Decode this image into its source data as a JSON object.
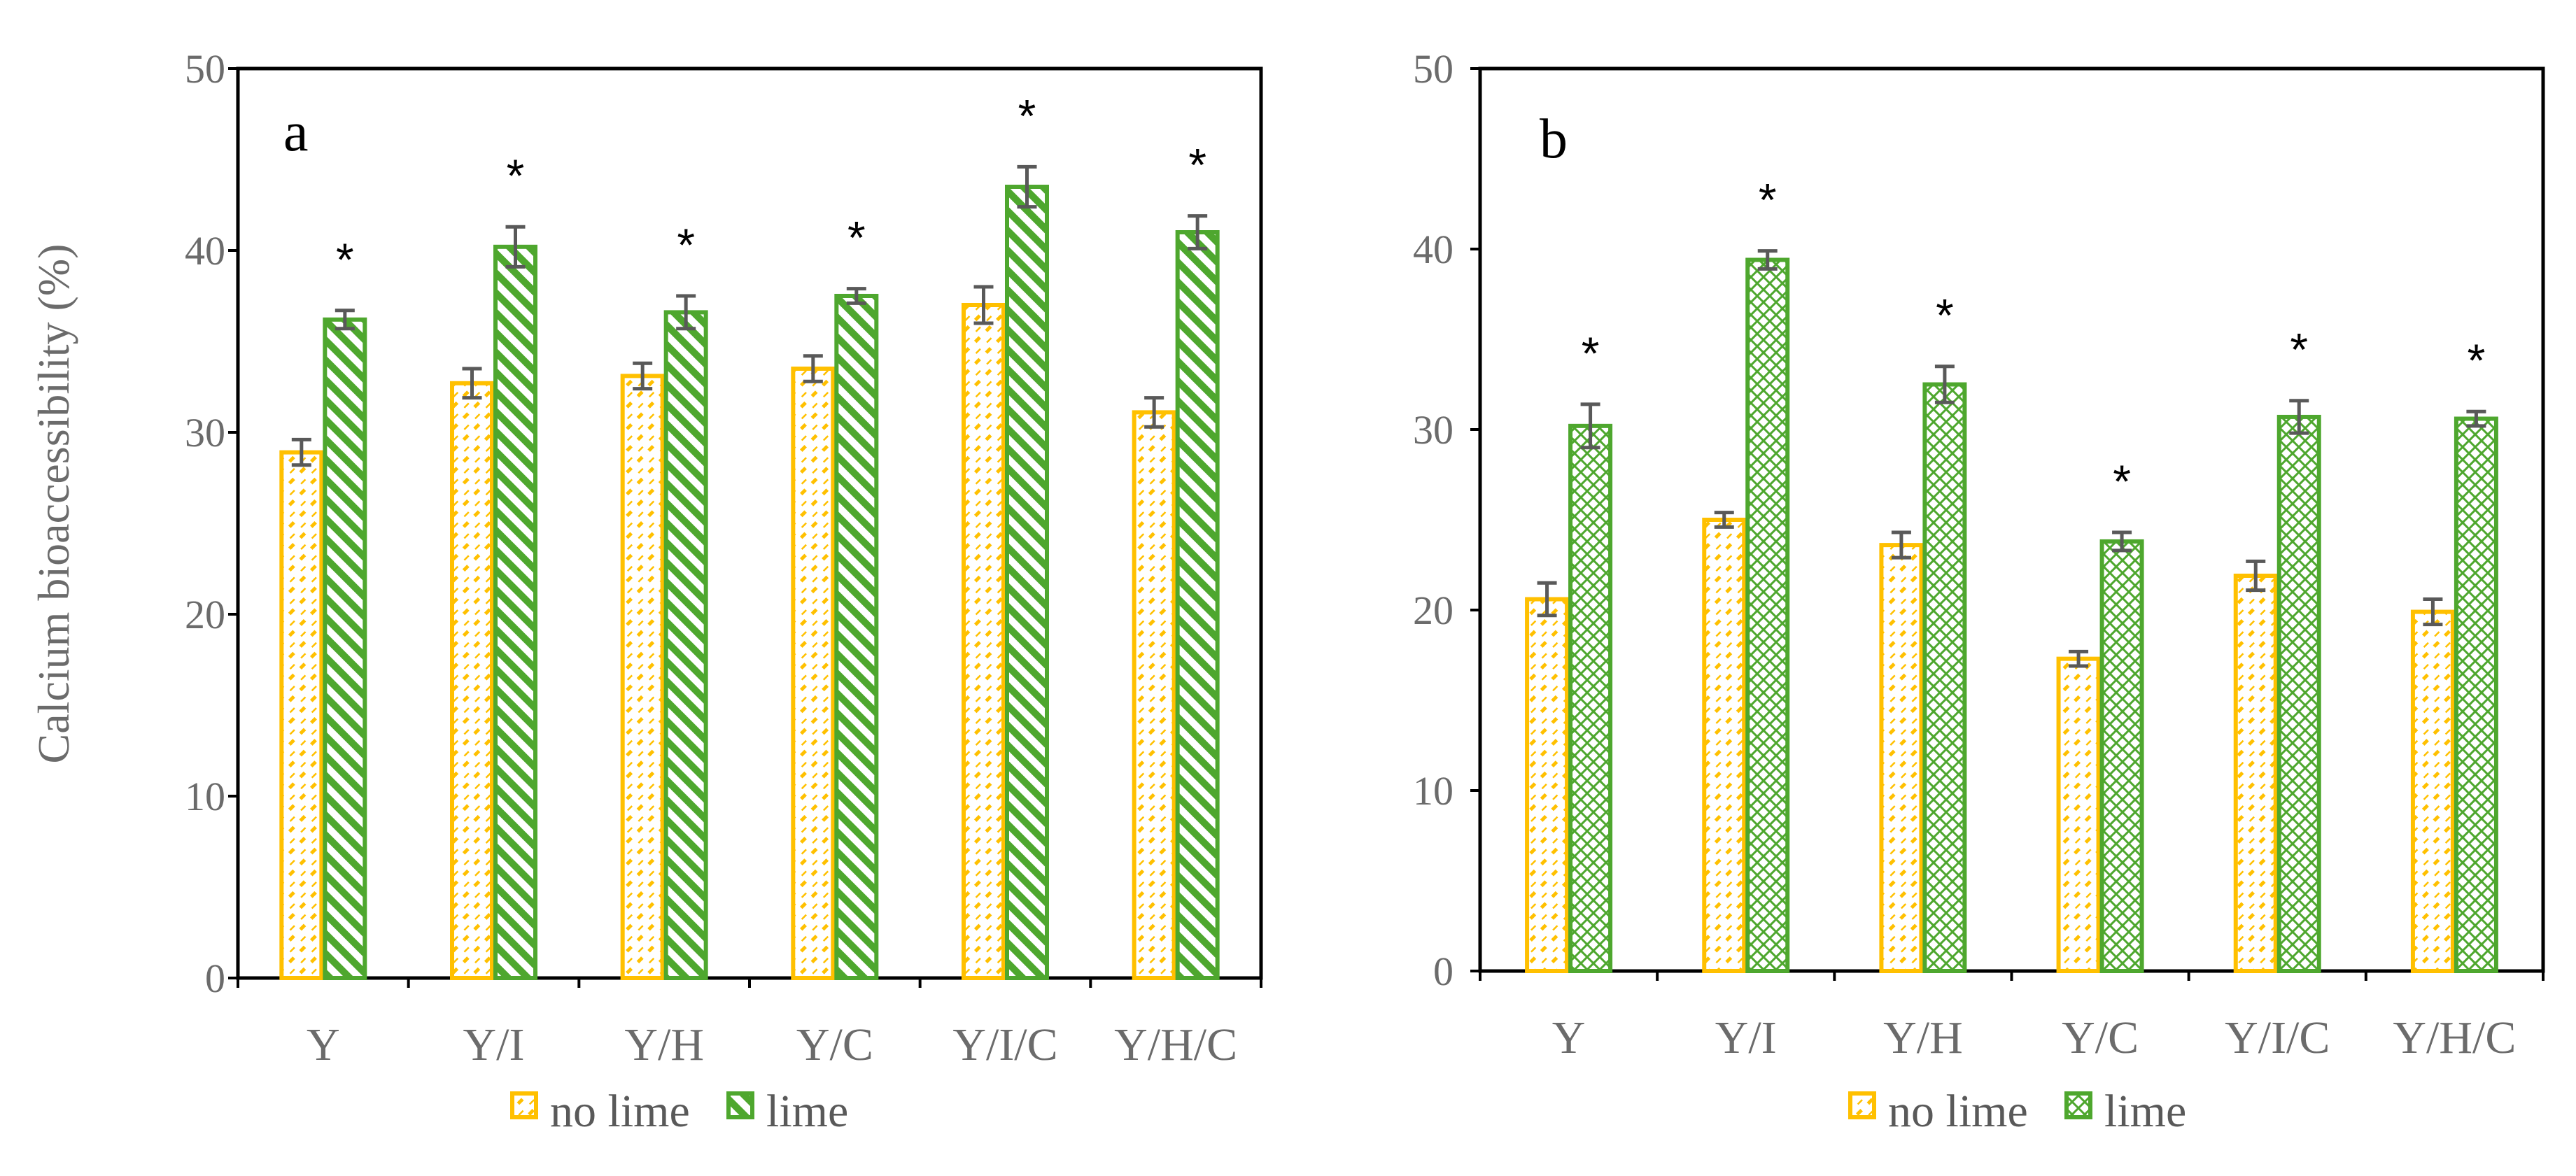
{
  "colors": {
    "no_lime": "#FFC000",
    "lime": "#4EA72E",
    "error_bar": "#595959",
    "axis": "#000000"
  },
  "legend": {
    "no_lime_label": "no lime",
    "lime_label": "lime"
  },
  "chart_data": [
    {
      "type": "bar",
      "panel_label": "a",
      "ylabel": "Calcium bioaccessibility (%)",
      "ylim": [
        0,
        50
      ],
      "yticks": [
        "0",
        "10",
        "20",
        "30",
        "40",
        "50"
      ],
      "categories": [
        "Y",
        "Y/I",
        "Y/H",
        "Y/C",
        "Y/I/C",
        "Y/H/C"
      ],
      "series": [
        {
          "name": "no lime",
          "values": [
            28.9,
            32.7,
            33.1,
            33.5,
            37.0,
            31.1
          ],
          "errors": [
            0.7,
            0.8,
            0.7,
            0.7,
            1.0,
            0.8
          ]
        },
        {
          "name": "lime",
          "values": [
            36.2,
            40.2,
            36.6,
            37.5,
            43.5,
            41.0
          ],
          "errors": [
            0.5,
            1.1,
            0.9,
            0.4,
            1.1,
            0.9
          ]
        }
      ],
      "significance": [
        "*",
        "*",
        "*",
        "*",
        "*",
        "*"
      ],
      "lime_pattern": "diagonal-stripes",
      "no_lime_pattern": "dashed-diagonal",
      "legend_position": "bottom-center"
    },
    {
      "type": "bar",
      "panel_label": "b",
      "ylabel": "",
      "ylim": [
        0,
        50
      ],
      "yticks": [
        "0",
        "10",
        "20",
        "30",
        "40",
        "50"
      ],
      "categories": [
        "Y",
        "Y/I",
        "Y/H",
        "Y/C",
        "Y/I/C",
        "Y/H/C"
      ],
      "series": [
        {
          "name": "no lime",
          "values": [
            20.6,
            25.0,
            23.6,
            17.3,
            21.9,
            19.9
          ],
          "errors": [
            0.9,
            0.4,
            0.7,
            0.4,
            0.8,
            0.7
          ]
        },
        {
          "name": "lime",
          "values": [
            30.2,
            39.4,
            32.5,
            23.8,
            30.7,
            30.6
          ],
          "errors": [
            1.2,
            0.5,
            1.0,
            0.5,
            0.9,
            0.4
          ]
        }
      ],
      "significance": [
        "*",
        "*",
        "*",
        "*",
        "*",
        "*"
      ],
      "lime_pattern": "crosshatch",
      "no_lime_pattern": "dashed-diagonal",
      "legend_position": "bottom-center"
    }
  ]
}
